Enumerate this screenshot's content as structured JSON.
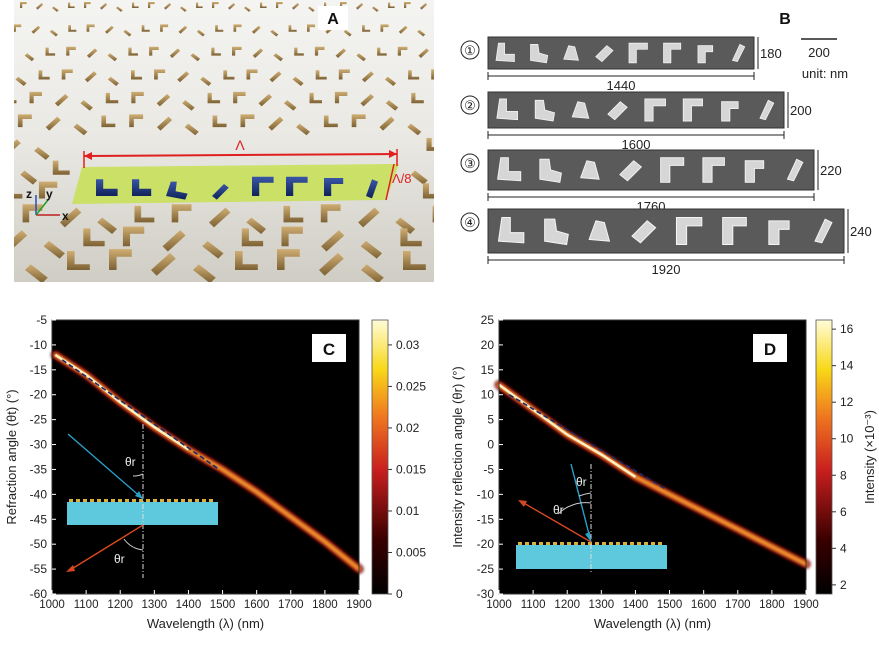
{
  "panel_a": {
    "label": "A",
    "period_label": "Λ",
    "width_label": "Λ/8",
    "axis_x": "x",
    "axis_y": "y",
    "axis_z": "z"
  },
  "panel_b": {
    "label": "B",
    "scale_value": "200",
    "unit_text": "unit: nm",
    "rows": [
      {
        "index": "①",
        "height": "180",
        "length": "1440"
      },
      {
        "index": "②",
        "height": "200",
        "length": "1600"
      },
      {
        "index": "③",
        "height": "220",
        "length": "1760"
      },
      {
        "index": "④",
        "height": "240",
        "length": "1920"
      }
    ]
  },
  "chart_data": [
    {
      "panel": "C",
      "type": "heatmap",
      "xlabel": "Wavelength (λ) (nm)",
      "ylabel": "Refraction angle (θt) (°)",
      "xlim": [
        1000,
        1900
      ],
      "ylim": [
        -60,
        -5
      ],
      "xticks": [
        "1000",
        "1100",
        "1200",
        "1300",
        "1400",
        "1500",
        "1600",
        "1700",
        "1800",
        "1900"
      ],
      "yticks": [
        "-5",
        "-10",
        "-15",
        "-20",
        "-25",
        "-30",
        "-35",
        "-40",
        "-45",
        "-50",
        "-55",
        "-60"
      ],
      "colorbar": {
        "min": 0,
        "max": 0.033,
        "ticks": [
          "0.03",
          "0.025",
          "0.02",
          "0.015",
          "0.01",
          "0.005",
          "0"
        ]
      },
      "ridge": {
        "x": [
          1010,
          1100,
          1200,
          1300,
          1400,
          1500,
          1600,
          1700,
          1800,
          1900
        ],
        "y": [
          -12,
          -16,
          -21.5,
          -26.5,
          -31,
          -35,
          -39.5,
          -44.5,
          -49.5,
          -55
        ]
      },
      "theory": {
        "x": [
          1030,
          1490
        ],
        "y": [
          -13,
          -35
        ]
      },
      "inset_label": "θr"
    },
    {
      "panel": "D",
      "type": "heatmap",
      "xlabel": "Wavelength (λ) (nm)",
      "ylabel": "Intensity reflection angle (θr) (°)",
      "xlim": [
        1000,
        1900
      ],
      "ylim": [
        -30,
        25
      ],
      "xticks": [
        "1000",
        "1100",
        "1200",
        "1300",
        "1400",
        "1500",
        "1600",
        "1700",
        "1800",
        "1900"
      ],
      "yticks": [
        "25",
        "20",
        "15",
        "10",
        "5",
        "0",
        "-5",
        "-10",
        "-15",
        "-20",
        "-25",
        "-30"
      ],
      "colorbar": {
        "min": 1.5,
        "max": 16.5,
        "ticks": [
          "16",
          "14",
          "12",
          "10",
          "8",
          "6",
          "4",
          "2"
        ],
        "label": "Intensity (×10⁻³)"
      },
      "ridge": {
        "x": [
          1000,
          1100,
          1200,
          1300,
          1400,
          1500,
          1600,
          1700,
          1800,
          1900
        ],
        "y": [
          12,
          7,
          2,
          -2,
          -6.5,
          -10,
          -13.5,
          -17,
          -20.5,
          -24
        ]
      },
      "theory": {
        "x": [
          1030,
          1490
        ],
        "y": [
          10,
          -9
        ]
      },
      "inset_label": "θr"
    }
  ]
}
